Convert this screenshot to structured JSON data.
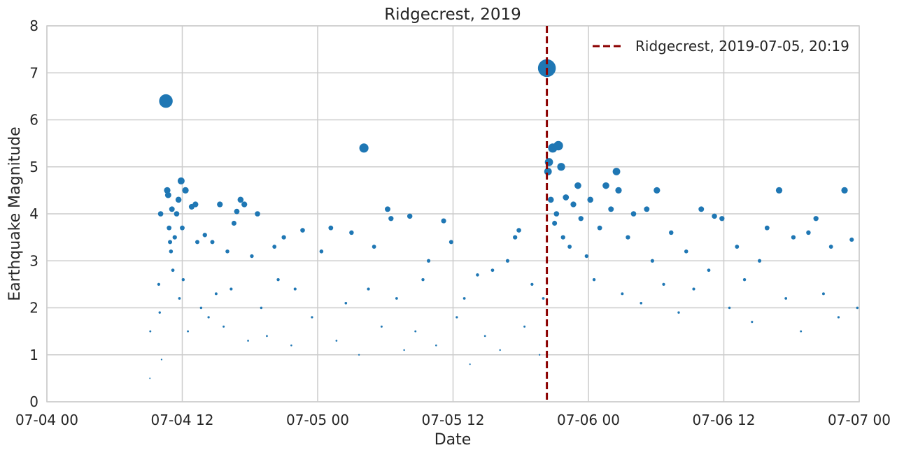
{
  "chart_data": {
    "type": "scatter",
    "title": "Ridgecrest, 2019",
    "xlabel": "Date",
    "ylabel": "Earthquake Magnitude",
    "color": "#1f77b4",
    "grid": true,
    "legend": "upper right",
    "xlim": [
      "07-04 00",
      "07-07 00"
    ],
    "xticks": [
      "07-04 00",
      "07-04 12",
      "07-05 00",
      "07-05 12",
      "07-06 00",
      "07-06 12",
      "07-07 00"
    ],
    "ylim": [
      0,
      8
    ],
    "yticks": [
      0,
      1,
      2,
      3,
      4,
      5,
      6,
      7,
      8
    ],
    "event": {
      "x": "07-05 20:19",
      "label": "Ridgecrest, 2019-07-05, 20:19",
      "color": "#8b0000"
    },
    "x": [
      "07-04 09:08",
      "07-04 09:10",
      "07-04 09:55",
      "07-04 10:00",
      "07-04 10:05",
      "07-04 10:10",
      "07-04 10:33",
      "07-04 10:40",
      "07-04 10:45",
      "07-04 10:50",
      "07-04 10:55",
      "07-04 11:00",
      "07-04 11:05",
      "07-04 11:10",
      "07-04 11:20",
      "07-04 11:30",
      "07-04 11:40",
      "07-04 11:45",
      "07-04 11:54",
      "07-04 12:00",
      "07-04 12:05",
      "07-04 12:17",
      "07-04 12:30",
      "07-04 12:50",
      "07-04 13:10",
      "07-04 13:20",
      "07-04 13:40",
      "07-04 14:00",
      "07-04 14:20",
      "07-04 14:40",
      "07-04 15:00",
      "07-04 15:20",
      "07-04 15:40",
      "07-04 16:00",
      "07-04 16:20",
      "07-04 16:35",
      "07-04 16:50",
      "07-04 17:10",
      "07-04 17:30",
      "07-04 17:50",
      "07-04 18:10",
      "07-04 18:40",
      "07-04 19:00",
      "07-04 19:30",
      "07-04 20:10",
      "07-04 20:30",
      "07-04 21:00",
      "07-04 21:40",
      "07-04 22:00",
      "07-04 22:40",
      "07-04 23:30",
      "07-05 00:20",
      "07-05 01:10",
      "07-05 01:40",
      "07-05 02:30",
      "07-05 03:00",
      "07-05 03:40",
      "07-05 04:06",
      "07-05 04:30",
      "07-05 05:00",
      "07-05 05:40",
      "07-05 06:12",
      "07-05 06:30",
      "07-05 07:00",
      "07-05 07:40",
      "07-05 08:10",
      "07-05 08:40",
      "07-05 09:20",
      "07-05 09:50",
      "07-05 10:30",
      "07-05 11:10",
      "07-05 11:50",
      "07-05 12:20",
      "07-05 13:00",
      "07-05 13:30",
      "07-05 14:10",
      "07-05 14:50",
      "07-05 15:30",
      "07-05 16:10",
      "07-05 16:50",
      "07-05 17:30",
      "07-05 17:50",
      "07-05 18:20",
      "07-05 19:00",
      "07-05 19:40",
      "07-05 20:00",
      "07-05 20:19",
      "07-05 20:25",
      "07-05 20:30",
      "07-05 20:40",
      "07-05 20:50",
      "07-05 21:00",
      "07-05 21:10",
      "07-05 21:20",
      "07-05 21:35",
      "07-05 21:45",
      "07-05 22:00",
      "07-05 22:20",
      "07-05 22:40",
      "07-05 23:04",
      "07-05 23:20",
      "07-05 23:50",
      "07-06 00:10",
      "07-06 00:30",
      "07-06 01:00",
      "07-06 01:33",
      "07-06 02:00",
      "07-06 02:29",
      "07-06 02:40",
      "07-06 03:00",
      "07-06 03:30",
      "07-06 04:00",
      "07-06 04:40",
      "07-06 05:10",
      "07-06 05:40",
      "07-06 06:04",
      "07-06 06:40",
      "07-06 07:20",
      "07-06 08:00",
      "07-06 08:40",
      "07-06 09:20",
      "07-06 10:00",
      "07-06 10:40",
      "07-06 11:10",
      "07-06 11:50",
      "07-06 12:30",
      "07-06 13:10",
      "07-06 13:50",
      "07-06 14:30",
      "07-06 15:10",
      "07-06 15:50",
      "07-06 16:54",
      "07-06 17:30",
      "07-06 18:10",
      "07-06 18:50",
      "07-06 19:30",
      "07-06 20:10",
      "07-06 20:50",
      "07-06 21:30",
      "07-06 22:10",
      "07-06 22:42",
      "07-06 23:20",
      "07-06 23:50"
    ],
    "values": [
      0.5,
      1.5,
      2.5,
      1.9,
      4.0,
      0.9,
      6.4,
      4.5,
      4.4,
      3.7,
      3.4,
      3.2,
      4.1,
      2.8,
      3.5,
      4.0,
      4.3,
      2.2,
      4.7,
      3.7,
      2.6,
      4.5,
      1.5,
      4.15,
      4.2,
      3.4,
      2.0,
      3.55,
      1.8,
      3.4,
      2.3,
      4.2,
      1.6,
      3.2,
      2.4,
      3.8,
      4.05,
      4.3,
      4.2,
      1.3,
      3.1,
      4.0,
      2.0,
      1.4,
      3.3,
      2.6,
      3.5,
      1.2,
      2.4,
      3.65,
      1.8,
      3.2,
      3.7,
      1.3,
      2.1,
      3.6,
      1.0,
      5.4,
      2.4,
      3.3,
      1.6,
      4.1,
      3.9,
      2.2,
      1.1,
      3.95,
      1.5,
      2.6,
      3.0,
      1.2,
      3.85,
      3.4,
      1.8,
      2.2,
      0.8,
      2.7,
      1.4,
      2.8,
      1.1,
      3.0,
      3.5,
      3.65,
      1.6,
      2.5,
      1.0,
      2.2,
      7.1,
      4.9,
      5.1,
      4.3,
      5.4,
      3.8,
      4.0,
      5.45,
      5.0,
      3.5,
      4.35,
      3.3,
      4.2,
      4.6,
      3.9,
      3.1,
      4.3,
      2.6,
      3.7,
      4.6,
      4.1,
      4.9,
      4.5,
      2.3,
      3.5,
      4.0,
      2.1,
      4.1,
      3.0,
      4.5,
      2.5,
      3.6,
      1.9,
      3.2,
      2.4,
      4.1,
      2.8,
      3.95,
      3.9,
      2.0,
      3.3,
      2.6,
      1.7,
      3.0,
      3.7,
      4.5,
      2.2,
      3.5,
      1.5,
      3.6,
      3.9,
      2.3,
      3.3,
      1.8,
      4.5,
      3.45,
      2.0
    ]
  }
}
